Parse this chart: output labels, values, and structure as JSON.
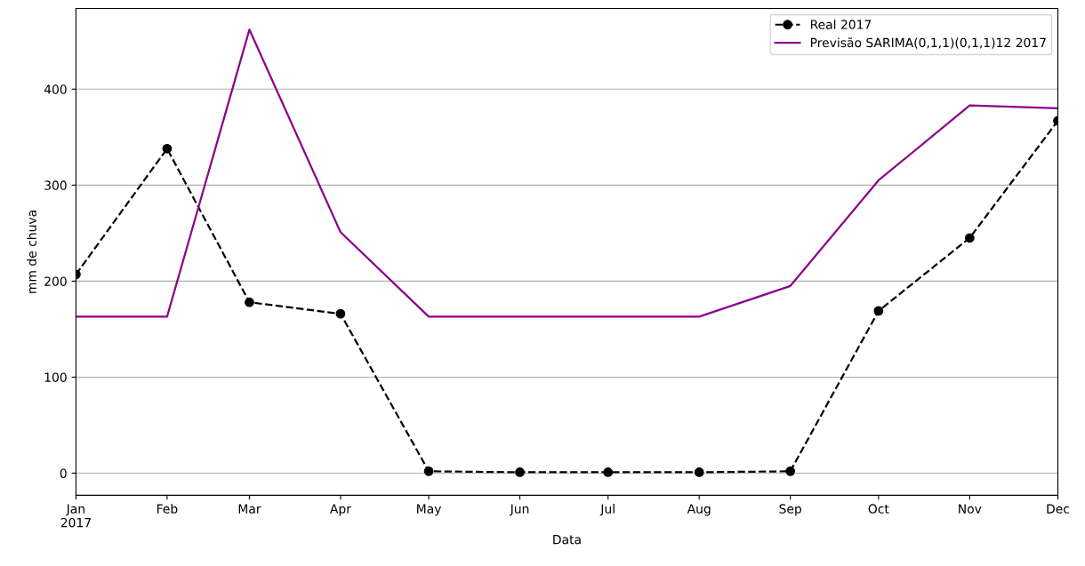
{
  "chart_data": {
    "type": "line",
    "xlabel": "Data",
    "ylabel": "mm de chuva",
    "x": [
      "2017-01",
      "2017-02",
      "2017-03",
      "2017-04",
      "2017-05",
      "2017-06",
      "2017-07",
      "2017-08",
      "2017-09",
      "2017-10",
      "2017-11",
      "2017-12"
    ],
    "series": [
      {
        "name": "Real 2017",
        "color": "#000000",
        "marker": "circle",
        "line_style": "dashed",
        "values": [
          207,
          338,
          178,
          166,
          2,
          1,
          1,
          1,
          2,
          169,
          245,
          367
        ]
      },
      {
        "name": "Previsão SARIMA(0,1,1)(0,1,1)12 2017",
        "color": "#8b008b",
        "marker": "none",
        "line_style": "solid",
        "values": [
          163,
          163,
          462,
          251,
          163,
          163,
          163,
          163,
          195,
          305,
          383,
          380
        ]
      }
    ],
    "xlim": [
      "2017-01",
      "2017-12"
    ],
    "xticks": [
      {
        "value": "2017-01",
        "label": "Jan\n2017"
      },
      {
        "value": "2017-02",
        "label": "Feb"
      },
      {
        "value": "2017-03",
        "label": "Mar"
      },
      {
        "value": "2017-04",
        "label": "Apr"
      },
      {
        "value": "2017-05",
        "label": "May"
      },
      {
        "value": "2017-06",
        "label": "Jun"
      },
      {
        "value": "2017-07",
        "label": "Jul"
      },
      {
        "value": "2017-08",
        "label": "Aug"
      },
      {
        "value": "2017-09",
        "label": "Sep"
      },
      {
        "value": "2017-10",
        "label": "Oct"
      },
      {
        "value": "2017-11",
        "label": "Nov"
      },
      {
        "value": "2017-12",
        "label": "Dec"
      }
    ],
    "ylim": [
      -23,
      484
    ],
    "yticks": [
      0,
      100,
      200,
      300,
      400
    ],
    "grid": "y",
    "legend": "top right"
  }
}
